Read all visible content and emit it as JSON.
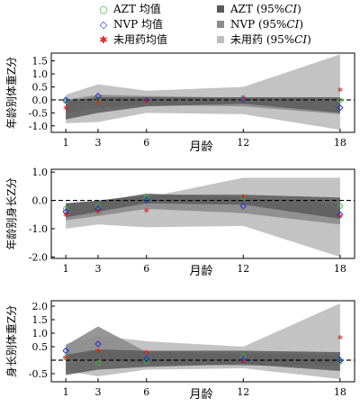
{
  "legend": {
    "azt_mean": "AZT 均值",
    "nvp_mean": "NVP 均值",
    "none_mean": "未用药均值",
    "azt_ci_prefix": "AZT (95%",
    "nvp_ci_prefix": "NVP (95%",
    "none_ci_prefix": "未用药 (95%",
    "ci_italic": "CI",
    "ci_suffix": ")"
  },
  "colors": {
    "azt": "#3fae3f",
    "nvp": "#2233cc",
    "none": "#e02020",
    "azt_band": "#5a5a5a",
    "nvp_band": "#8c8c8c",
    "none_band": "#bdbdbd"
  },
  "chart_data": [
    {
      "type": "line",
      "ylabel": "年龄别体重Z分",
      "xlabel": "月龄",
      "x": [
        1,
        3,
        6,
        12,
        18
      ],
      "x_ticks": [
        "1",
        "3",
        "6",
        "12",
        "18"
      ],
      "ylim": [
        -1.25,
        1.8
      ],
      "y_ticks": [
        "1.5",
        "1.0",
        "0.5",
        "0.0",
        "-0.5",
        "-1.0"
      ],
      "y_tick_values": [
        1.5,
        1.0,
        0.5,
        0.0,
        -0.5,
        -1.0
      ],
      "reference_line": 0,
      "series": [
        {
          "name": "AZT 均值",
          "values": [
            -0.05,
            -0.05,
            -0.05,
            0.08,
            -0.02
          ],
          "ci_lower": [
            -0.75,
            -0.5,
            -0.25,
            -0.15,
            -0.5
          ],
          "ci_upper": [
            -0.05,
            0.1,
            0.1,
            0.1,
            0.1
          ]
        },
        {
          "name": "NVP 均值",
          "values": [
            0.0,
            0.15,
            -0.02,
            0.02,
            -0.3
          ],
          "ci_lower": [
            -0.5,
            -0.3,
            -0.2,
            -0.25,
            -0.55
          ],
          "ci_upper": [
            0.0,
            0.2,
            0.15,
            0.08,
            0.05
          ]
        },
        {
          "name": "未用药均值",
          "values": [
            -0.35,
            -0.15,
            -0.1,
            0.0,
            0.35
          ],
          "ci_lower": [
            -0.9,
            -0.85,
            -0.5,
            -0.55,
            -1.15
          ],
          "ci_upper": [
            0.2,
            0.6,
            0.35,
            0.5,
            1.75
          ]
        }
      ]
    },
    {
      "type": "line",
      "ylabel": "年龄别身长Z分",
      "xlabel": "月龄",
      "x": [
        1,
        3,
        6,
        12,
        18
      ],
      "x_ticks": [
        "1",
        "3",
        "6",
        "12",
        "18"
      ],
      "ylim": [
        -2.05,
        1.1
      ],
      "y_ticks": [
        "1.0",
        "0.0",
        "-1.0",
        "-2.0"
      ],
      "y_tick_values": [
        1.0,
        0.0,
        -1.0,
        -2.0
      ],
      "reference_line": 0,
      "series": [
        {
          "name": "AZT 均值",
          "values": [
            -0.3,
            -0.2,
            0.1,
            0.1,
            -0.2
          ],
          "ci_lower": [
            -0.6,
            -0.4,
            -0.1,
            -0.15,
            -0.65
          ],
          "ci_upper": [
            -0.1,
            0.0,
            0.2,
            0.2,
            0.1
          ]
        },
        {
          "name": "NVP 均值",
          "values": [
            -0.4,
            -0.3,
            0.0,
            -0.2,
            -0.5
          ],
          "ci_lower": [
            -0.7,
            -0.55,
            -0.3,
            -0.45,
            -0.85
          ],
          "ci_upper": [
            -0.1,
            -0.05,
            0.25,
            0.1,
            -0.1
          ]
        },
        {
          "name": "未用药均值",
          "values": [
            -0.55,
            -0.45,
            -0.4,
            0.1,
            -0.6
          ],
          "ci_lower": [
            -1.0,
            -0.85,
            -0.95,
            -0.9,
            -2.0
          ],
          "ci_upper": [
            -0.2,
            -0.05,
            0.1,
            0.8,
            0.8
          ]
        }
      ]
    },
    {
      "type": "line",
      "ylabel": "身长别体重Z分",
      "xlabel": "月龄",
      "x": [
        1,
        3,
        6,
        12,
        18
      ],
      "x_ticks": [
        "1",
        "3",
        "6",
        "12",
        "18"
      ],
      "ylim": [
        -0.8,
        2.2
      ],
      "y_ticks": [
        "2.0",
        "1.5",
        "1.0",
        "0.5",
        "-0.5"
      ],
      "y_tick_values": [
        2.0,
        1.5,
        1.0,
        0.5,
        -0.5
      ],
      "reference_line": 0,
      "series": [
        {
          "name": "AZT 均值",
          "values": [
            0.1,
            -0.1,
            -0.05,
            0.15,
            -0.05
          ],
          "ci_lower": [
            -0.55,
            -0.35,
            -0.25,
            -0.15,
            -0.4
          ],
          "ci_upper": [
            0.2,
            0.4,
            0.35,
            0.35,
            0.3
          ]
        },
        {
          "name": "NVP 均值",
          "values": [
            0.35,
            0.6,
            0.05,
            0.0,
            0.0
          ],
          "ci_lower": [
            0.0,
            0.05,
            -0.15,
            -0.2,
            -0.2
          ],
          "ci_upper": [
            0.55,
            1.25,
            0.3,
            0.25,
            0.2
          ]
        },
        {
          "name": "未用药均值",
          "values": [
            0.05,
            0.3,
            0.25,
            -0.1,
            0.8
          ],
          "ci_lower": [
            -0.4,
            -0.6,
            -0.35,
            -0.3,
            -0.7
          ],
          "ci_upper": [
            0.6,
            0.9,
            0.7,
            0.5,
            2.1
          ]
        }
      ]
    }
  ]
}
